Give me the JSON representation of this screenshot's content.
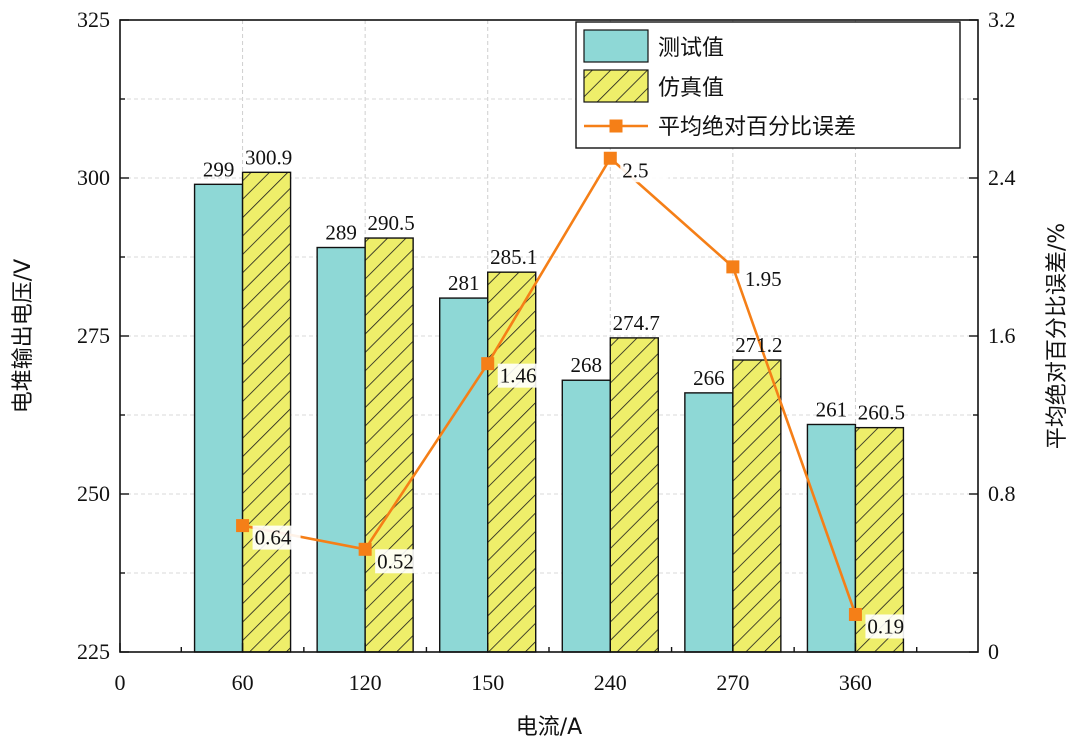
{
  "chart_data": {
    "type": "bar",
    "title": "",
    "xlabel": "电流/A",
    "ylabel": "电堆输出电压/V",
    "y2label": "平均绝对百分比误差/%",
    "x_ticks": [
      "0",
      "60",
      "120",
      "150",
      "240",
      "270",
      "360"
    ],
    "categories": [
      "60",
      "120",
      "150",
      "240",
      "270",
      "360"
    ],
    "ylim": [
      225,
      325
    ],
    "y_ticks": [
      225,
      250,
      275,
      300,
      325
    ],
    "y2lim": [
      0,
      3.2
    ],
    "y2_ticks": [
      "0",
      "0.8",
      "1.6",
      "2.4",
      "3.2"
    ],
    "grid": true,
    "legend_position": "top-right",
    "series": [
      {
        "name": "测试值",
        "type": "bar",
        "axis": "left",
        "color": "#8ed8d6",
        "values": [
          299,
          289,
          281,
          268,
          266,
          261
        ],
        "labels": [
          "299",
          "289",
          "281",
          "268",
          "266",
          "261"
        ]
      },
      {
        "name": "仿真值",
        "type": "bar",
        "axis": "left",
        "color": "#eeee6a",
        "pattern": "diagonal-hatch",
        "values": [
          300.9,
          290.5,
          285.1,
          274.7,
          271.2,
          260.5
        ],
        "labels": [
          "300.9",
          "290.5",
          "285.1",
          "274.7",
          "271.2",
          "260.5"
        ]
      },
      {
        "name": "平均绝对百分比误差",
        "type": "line",
        "axis": "right",
        "color": "#f57f17",
        "marker": "square",
        "values": [
          0.64,
          0.52,
          1.46,
          2.5,
          1.95,
          0.19
        ],
        "labels": [
          "0.64",
          "0.52",
          "1.46",
          "2.5",
          "1.95",
          "0.19"
        ]
      }
    ]
  }
}
